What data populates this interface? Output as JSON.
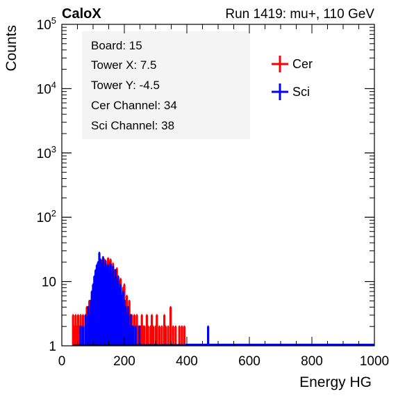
{
  "header": {
    "brand": "CaloX",
    "run_info": "Run 1419: mu+, 110 GeV"
  },
  "info_box": {
    "lines": [
      "Board: 15",
      "Tower X: 7.5",
      "Tower Y: -4.5",
      "Cer Channel: 34",
      "Sci Channel: 38"
    ]
  },
  "chart_data": {
    "type": "line",
    "title": "",
    "xlabel": "Energy HG",
    "ylabel": "Counts",
    "xlim": [
      0,
      1000
    ],
    "ylim": [
      1,
      100000
    ],
    "yscale": "log",
    "x_ticks": [
      0,
      200,
      400,
      600,
      800,
      1000
    ],
    "y_ticks": [
      {
        "value": 1,
        "label": "1"
      },
      {
        "value": 10,
        "label": "10"
      },
      {
        "value": 100,
        "label": "10",
        "sup": "2"
      },
      {
        "value": 1000,
        "label": "10",
        "sup": "3"
      },
      {
        "value": 10000,
        "label": "10",
        "sup": "4"
      },
      {
        "value": 100000,
        "label": "10",
        "sup": "5"
      }
    ],
    "grid": false,
    "legend": "top-right",
    "series": [
      {
        "name": "Cer",
        "color": "#ff0000",
        "x": [
          36,
          40,
          44,
          48,
          52,
          56,
          60,
          64,
          68,
          72,
          76,
          80,
          84,
          88,
          92,
          96,
          100,
          104,
          108,
          112,
          116,
          120,
          124,
          128,
          132,
          136,
          140,
          144,
          148,
          152,
          156,
          160,
          164,
          168,
          172,
          176,
          180,
          184,
          188,
          192,
          196,
          200,
          204,
          208,
          212,
          216,
          220,
          224,
          228,
          232,
          236,
          240,
          244,
          248,
          252,
          256,
          260,
          264,
          268,
          272,
          276,
          280,
          284,
          288,
          292,
          296,
          300,
          304,
          308,
          312,
          316,
          320,
          324,
          328,
          332,
          336,
          340,
          344,
          348,
          352,
          356,
          360,
          364,
          368,
          372,
          376,
          380,
          384,
          388,
          392
        ],
        "y": [
          3,
          2,
          3,
          2,
          3,
          2,
          3,
          2,
          3,
          1,
          2,
          4,
          3,
          5,
          4,
          6,
          5,
          9,
          8,
          11,
          10,
          15,
          12,
          21,
          16,
          22,
          19,
          18,
          23,
          20,
          22,
          17,
          19,
          15,
          14,
          16,
          12,
          10,
          11,
          6,
          8,
          9,
          5,
          6,
          4,
          5,
          3,
          3,
          2,
          3,
          2,
          3,
          2,
          1,
          2,
          3,
          2,
          2,
          1,
          3,
          2,
          1,
          2,
          3,
          2,
          1,
          2,
          3,
          1,
          2,
          1,
          2,
          1,
          3,
          2,
          1,
          2,
          1,
          4,
          1,
          2,
          1,
          2,
          1,
          1,
          2,
          1,
          2,
          1,
          2
        ]
      },
      {
        "name": "Sci",
        "color": "#0000ff",
        "x": [
          56,
          60,
          64,
          68,
          72,
          76,
          80,
          84,
          88,
          92,
          96,
          100,
          104,
          108,
          112,
          116,
          120,
          124,
          128,
          132,
          136,
          140,
          144,
          148,
          152,
          156,
          160,
          164,
          168,
          172,
          176,
          180,
          184,
          188,
          192,
          196,
          200,
          204,
          208,
          212,
          216,
          220,
          224,
          228,
          232,
          236,
          240,
          244,
          248,
          252,
          256,
          260,
          264,
          268,
          272,
          276,
          280,
          284,
          288,
          292,
          296,
          300,
          304,
          308,
          312,
          316,
          320,
          324,
          328,
          332,
          336,
          340,
          344,
          348,
          352,
          356,
          360,
          364,
          368,
          372,
          376,
          380,
          384,
          388,
          392,
          396,
          400,
          404,
          408,
          412,
          416,
          420,
          424,
          428,
          432,
          436,
          440,
          444,
          448,
          452,
          456,
          460,
          464,
          468,
          472
        ],
        "y": [
          1,
          2,
          1,
          2,
          1,
          3,
          2,
          4,
          3,
          5,
          7,
          9,
          12,
          15,
          18,
          20,
          28,
          22,
          19,
          24,
          17,
          21,
          16,
          18,
          14,
          19,
          13,
          17,
          11,
          15,
          10,
          12,
          8,
          9,
          6,
          7,
          5,
          4,
          3,
          4,
          2,
          3,
          2,
          2,
          1,
          2,
          1,
          1,
          2,
          1,
          1,
          1,
          1,
          1,
          1,
          1,
          1,
          1,
          1,
          1,
          1,
          1,
          1,
          1,
          1,
          1,
          1,
          1,
          1,
          1,
          1,
          1,
          1,
          1,
          1,
          1,
          1,
          1,
          1,
          1,
          1,
          1,
          1,
          1,
          1,
          1,
          1,
          1,
          1,
          1,
          1,
          1,
          1,
          1,
          1,
          1,
          1,
          1,
          1,
          1,
          1,
          1,
          1,
          2,
          1
        ]
      }
    ]
  }
}
